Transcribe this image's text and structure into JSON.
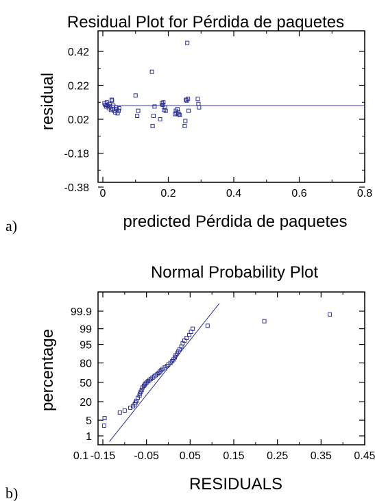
{
  "panel_labels": [
    "a)",
    "b)"
  ],
  "colors": {
    "marker": "#2b2f8f",
    "frame": "#000000",
    "fit_line": "#2b2f8f"
  },
  "chart_data": [
    {
      "type": "scatter",
      "title": "Residual Plot for Pérdida de paquetes",
      "xlabel": "predicted Pérdida de paquetes",
      "ylabel": "residual",
      "xlim": [
        0,
        0.8
      ],
      "ylim": [
        -0.38,
        0.52
      ],
      "xticks": [
        0,
        0.2,
        0.4,
        0.6,
        0.8
      ],
      "xtick_labels": [
        "0",
        "0.2",
        "0.4",
        "0.6",
        "0.8"
      ],
      "yticks": [
        -0.38,
        -0.18,
        0.02,
        0.22,
        0.42
      ],
      "ytick_labels": [
        "-0.38",
        "-0.18",
        "0.02",
        "0.22",
        "0.42"
      ],
      "reference_line": {
        "y": 0.1,
        "x_range": [
          0,
          0.8
        ]
      },
      "grid": false,
      "series": [
        {
          "marker": "square",
          "points": [
            [
              0.005,
              0.115
            ],
            [
              0.008,
              0.105
            ],
            [
              0.01,
              0.095
            ],
            [
              0.012,
              0.12
            ],
            [
              0.015,
              0.1
            ],
            [
              0.018,
              0.085
            ],
            [
              0.02,
              0.11
            ],
            [
              0.022,
              0.095
            ],
            [
              0.025,
              0.075
            ],
            [
              0.027,
              0.135
            ],
            [
              0.028,
              0.13
            ],
            [
              0.03,
              0.08
            ],
            [
              0.032,
              0.1
            ],
            [
              0.035,
              0.07
            ],
            [
              0.038,
              0.06
            ],
            [
              0.04,
              0.09
            ],
            [
              0.042,
              0.08
            ],
            [
              0.045,
              0.055
            ],
            [
              0.048,
              0.07
            ],
            [
              0.05,
              0.085
            ],
            [
              0.1,
              0.16
            ],
            [
              0.105,
              0.04
            ],
            [
              0.108,
              0.07
            ],
            [
              0.15,
              0.3
            ],
            [
              0.152,
              -0.02
            ],
            [
              0.155,
              0.04
            ],
            [
              0.158,
              0.095
            ],
            [
              0.175,
              0.02
            ],
            [
              0.18,
              0.115
            ],
            [
              0.183,
              0.105
            ],
            [
              0.185,
              0.12
            ],
            [
              0.187,
              0.075
            ],
            [
              0.19,
              0.09
            ],
            [
              0.192,
              0.07
            ],
            [
              0.22,
              0.05
            ],
            [
              0.223,
              0.07
            ],
            [
              0.225,
              0.055
            ],
            [
              0.228,
              0.08
            ],
            [
              0.23,
              0.06
            ],
            [
              0.232,
              0.05
            ],
            [
              0.235,
              0.045
            ],
            [
              0.25,
              -0.02
            ],
            [
              0.252,
              0.01
            ],
            [
              0.254,
              0.135
            ],
            [
              0.256,
              0.13
            ],
            [
              0.258,
              0.47
            ],
            [
              0.26,
              0.14
            ],
            [
              0.262,
              0.07
            ],
            [
              0.29,
              0.14
            ],
            [
              0.292,
              0.11
            ],
            [
              0.294,
              0.09
            ]
          ]
        }
      ]
    },
    {
      "type": "scatter",
      "title": "Normal Probability Plot",
      "xlabel": "RESIDUALS",
      "ylabel": "percentage",
      "xlim": [
        -0.15,
        0.45
      ],
      "xticks": [
        -0.15,
        -0.05,
        0.05,
        0.15,
        0.25,
        0.35,
        0.45
      ],
      "xtick_labels": [
        "-0.15",
        "-0.05",
        "0.05",
        "0.15",
        "0.25",
        "0.35",
        "0.45"
      ],
      "x_axis_corner_label": "0.1",
      "y_scale": "normal-probability",
      "ylim": [
        0.1,
        99.97
      ],
      "yticks": [
        1,
        5,
        20,
        50,
        80,
        95,
        99,
        99.9
      ],
      "ytick_labels": [
        "1",
        "5",
        "20",
        "50",
        "80",
        "95",
        "99",
        "99.9"
      ],
      "fit_line": {
        "from": [
          -0.135,
          0.5
        ],
        "to": [
          0.117,
          99.97
        ]
      },
      "grid": false,
      "series": [
        {
          "marker": "square",
          "points": [
            [
              -0.147,
              3.0
            ],
            [
              -0.146,
              6.0
            ],
            [
              -0.111,
              9.5
            ],
            [
              -0.1,
              11.0
            ],
            [
              -0.087,
              13.5
            ],
            [
              -0.081,
              15.0
            ],
            [
              -0.077,
              17.0
            ],
            [
              -0.075,
              19.0
            ],
            [
              -0.073,
              21.0
            ],
            [
              -0.07,
              25.0
            ],
            [
              -0.066,
              28.0
            ],
            [
              -0.065,
              31.0
            ],
            [
              -0.063,
              34.0
            ],
            [
              -0.061,
              37.0
            ],
            [
              -0.059,
              41.0
            ],
            [
              -0.056,
              44.0
            ],
            [
              -0.054,
              46.0
            ],
            [
              -0.052,
              48.0
            ],
            [
              -0.049,
              50.0
            ],
            [
              -0.046,
              52.0
            ],
            [
              -0.043,
              54.0
            ],
            [
              -0.04,
              56.0
            ],
            [
              -0.036,
              58.0
            ],
            [
              -0.032,
              60.0
            ],
            [
              -0.029,
              62.0
            ],
            [
              -0.025,
              64.0
            ],
            [
              -0.022,
              66.0
            ],
            [
              -0.019,
              68.0
            ],
            [
              -0.016,
              70.0
            ],
            [
              -0.013,
              72.0
            ],
            [
              -0.008,
              74.0
            ],
            [
              -0.003,
              76.0
            ],
            [
              0.0,
              78.0
            ],
            [
              0.005,
              80.0
            ],
            [
              0.009,
              82.0
            ],
            [
              0.012,
              84.0
            ],
            [
              0.015,
              86.0
            ],
            [
              0.017,
              88.0
            ],
            [
              0.02,
              89.5
            ],
            [
              0.023,
              91.0
            ],
            [
              0.026,
              92.5
            ],
            [
              0.03,
              94.0
            ],
            [
              0.033,
              95.5
            ],
            [
              0.037,
              96.5
            ],
            [
              0.042,
              97.3
            ],
            [
              0.048,
              98.0
            ],
            [
              0.052,
              98.6
            ],
            [
              0.056,
              99.0
            ],
            [
              0.09,
              99.3
            ],
            [
              0.22,
              99.6
            ],
            [
              0.37,
              99.84
            ]
          ]
        }
      ]
    }
  ]
}
